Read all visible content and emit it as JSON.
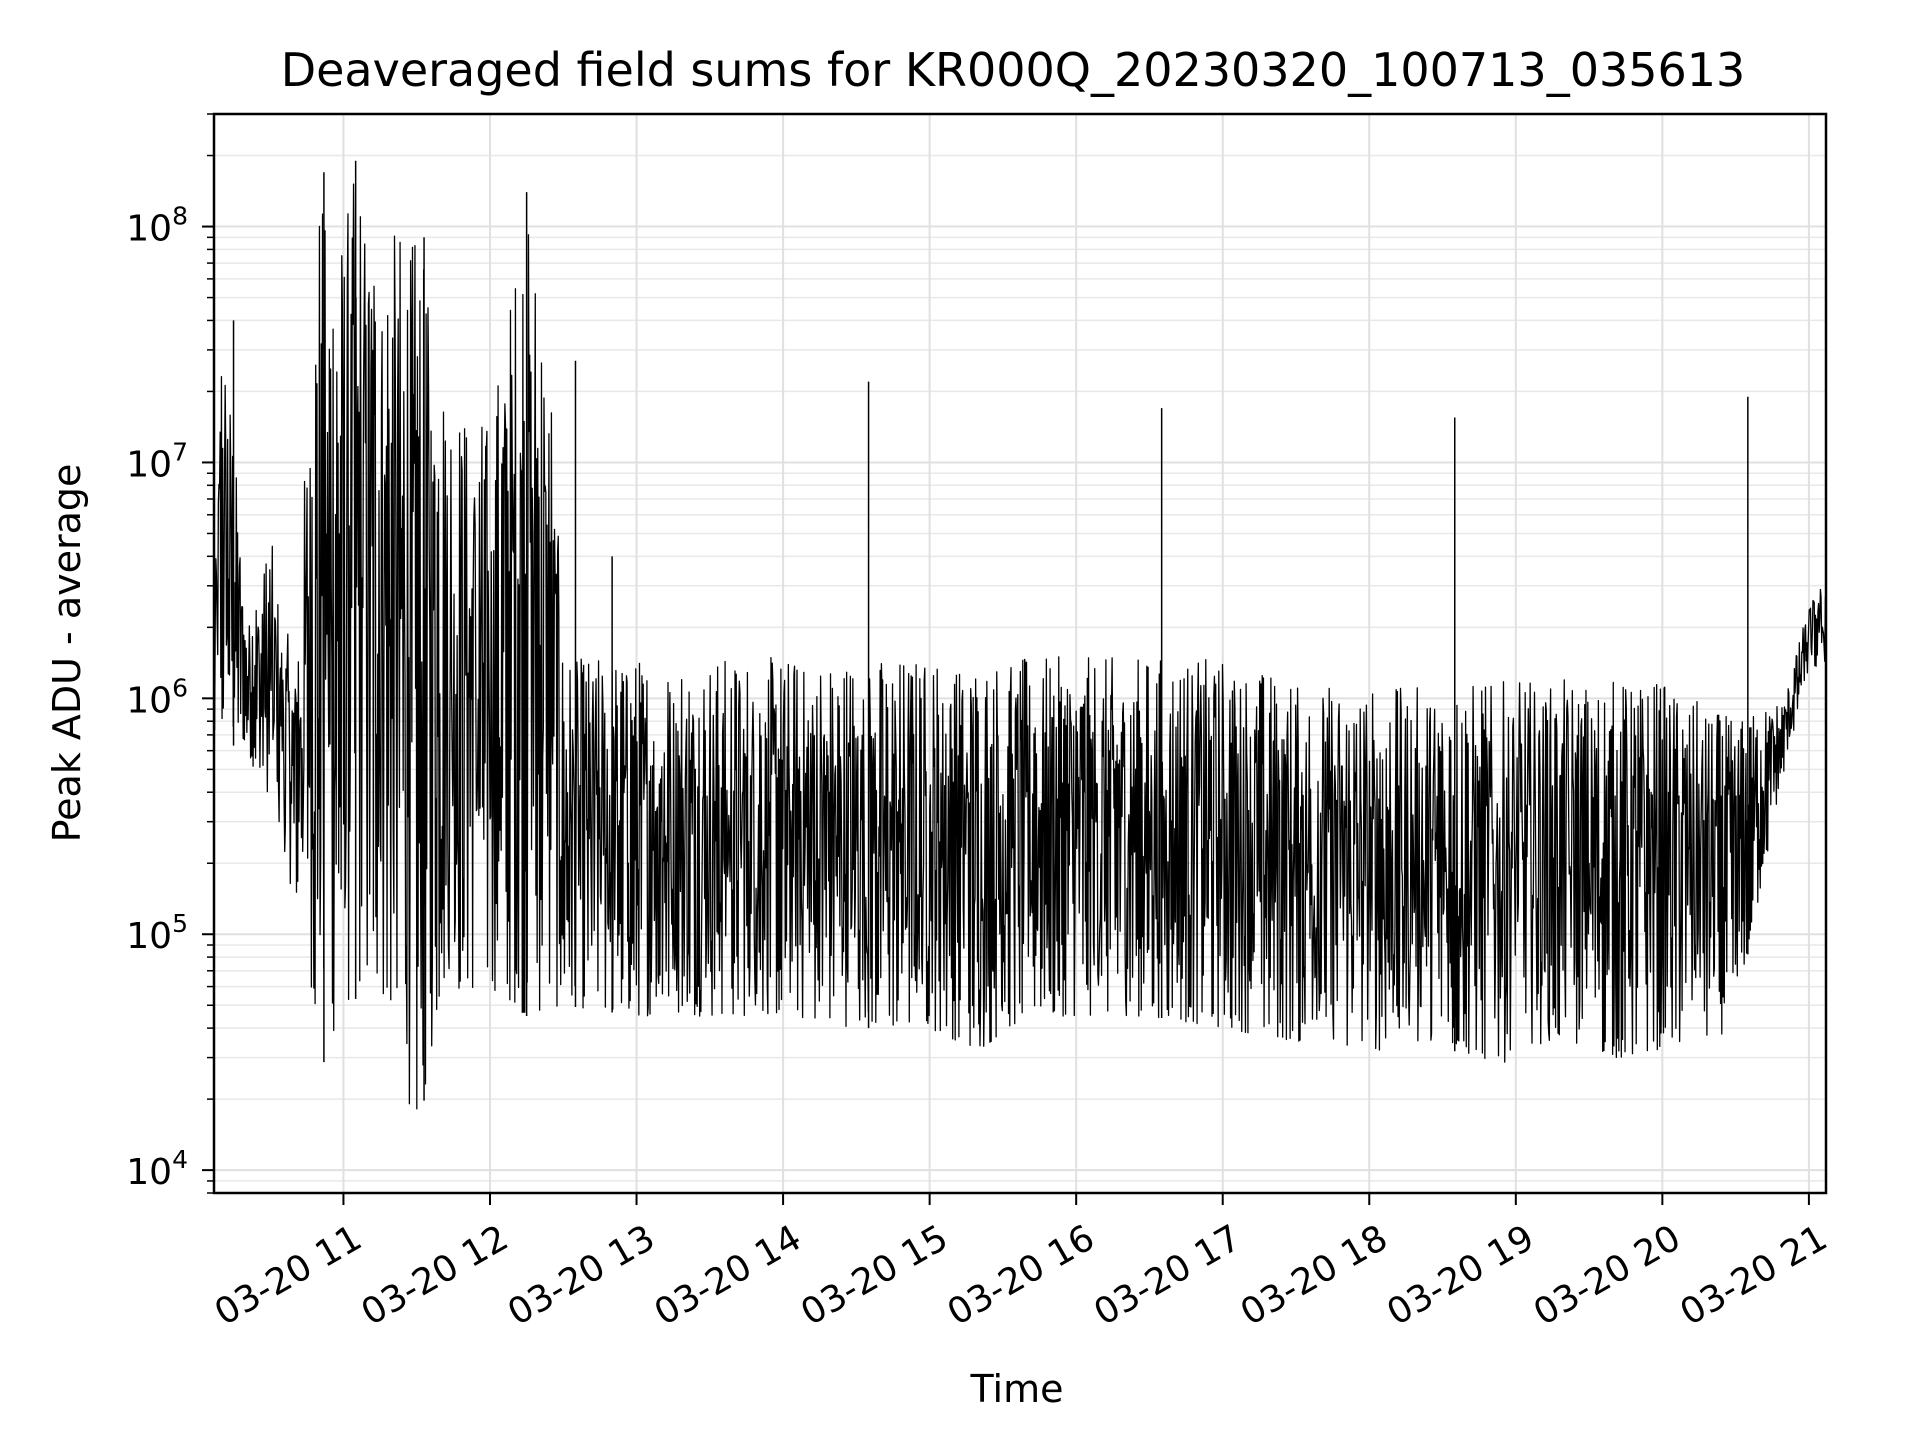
{
  "chart_data": {
    "type": "line",
    "title": "Deaveraged field sums for KR000Q_20230320_100713_035613",
    "xlabel": "Time",
    "ylabel": "Peak ADU - average",
    "yscale": "log",
    "grid": true,
    "line_color": "#000000",
    "x_ticks": [
      "03-20 11",
      "03-20 12",
      "03-20 13",
      "03-20 14",
      "03-20 15",
      "03-20 16",
      "03-20 17",
      "03-20 18",
      "03-20 19",
      "03-20 20",
      "03-20 21"
    ],
    "y_ticks": [
      {
        "base": "10",
        "exp": "4"
      },
      {
        "base": "10",
        "exp": "5"
      },
      {
        "base": "10",
        "exp": "6"
      },
      {
        "base": "10",
        "exp": "7"
      },
      {
        "base": "10",
        "exp": "8"
      }
    ],
    "xlim": [
      "03-20 10:07",
      "03-20 21:07"
    ],
    "ylim": [
      8000,
      300000000
    ],
    "envelope_min": [
      [
        "03-20 10:07",
        600000
      ],
      [
        "03-20 10:20",
        650000
      ],
      [
        "03-20 10:30",
        300000
      ],
      [
        "03-20 10:45",
        100000
      ],
      [
        "03-20 10:50",
        25000
      ],
      [
        "03-20 11:00",
        50000
      ],
      [
        "03-20 11:15",
        60000
      ],
      [
        "03-20 11:25",
        25000
      ],
      [
        "03-20 11:30",
        12700
      ],
      [
        "03-20 11:40",
        55000
      ],
      [
        "03-20 12:00",
        60000
      ],
      [
        "03-20 12:15",
        45000
      ],
      [
        "03-20 12:30",
        50000
      ],
      [
        "03-20 13:00",
        45000
      ],
      [
        "03-20 13:30",
        45000
      ],
      [
        "03-20 14:00",
        45000
      ],
      [
        "03-20 14:30",
        40000
      ],
      [
        "03-20 15:00",
        40000
      ],
      [
        "03-20 15:20",
        32000
      ],
      [
        "03-20 15:40",
        45000
      ],
      [
        "03-20 16:00",
        45000
      ],
      [
        "03-20 16:30",
        45000
      ],
      [
        "03-20 17:00",
        40000
      ],
      [
        "03-20 17:30",
        35000
      ],
      [
        "03-20 18:00",
        32000
      ],
      [
        "03-20 18:30",
        33000
      ],
      [
        "03-20 18:55",
        28000
      ],
      [
        "03-20 19:00",
        35000
      ],
      [
        "03-20 19:30",
        33000
      ],
      [
        "03-20 19:45",
        29000
      ],
      [
        "03-20 20:00",
        33000
      ],
      [
        "03-20 20:20",
        33000
      ],
      [
        "03-20 20:30",
        45000
      ],
      [
        "03-20 20:40",
        150000
      ],
      [
        "03-20 20:50",
        500000
      ],
      [
        "03-20 21:00",
        1300000
      ],
      [
        "03-20 21:07",
        1400000
      ]
    ],
    "envelope_max": [
      [
        "03-20 10:07",
        1800000
      ],
      [
        "03-20 10:10",
        40000000
      ],
      [
        "03-20 10:15",
        14000000
      ],
      [
        "03-20 10:20",
        2000000
      ],
      [
        "03-20 10:30",
        5000000
      ],
      [
        "03-20 10:40",
        1300000
      ],
      [
        "03-20 10:50",
        150000000
      ],
      [
        "03-20 11:00",
        100000000
      ],
      [
        "03-20 11:05",
        190000000
      ],
      [
        "03-20 11:15",
        110000000
      ],
      [
        "03-20 11:30",
        90000000
      ],
      [
        "03-20 11:45",
        20000000
      ],
      [
        "03-20 12:00",
        15000000
      ],
      [
        "03-20 12:15",
        140000000
      ],
      [
        "03-20 12:25",
        27000000
      ],
      [
        "03-20 12:30",
        1500000
      ],
      [
        "03-20 13:00",
        1500000
      ],
      [
        "03-20 14:00",
        1500000
      ],
      [
        "03-20 15:00",
        1500000
      ],
      [
        "03-20 16:00",
        1500000
      ],
      [
        "03-20 17:00",
        1500000
      ],
      [
        "03-20 17:30",
        1200000
      ],
      [
        "03-20 18:00",
        1100000
      ],
      [
        "03-20 19:00",
        1200000
      ],
      [
        "03-20 20:00",
        1200000
      ],
      [
        "03-20 20:30",
        800000
      ],
      [
        "03-20 20:50",
        1000000
      ],
      [
        "03-20 21:00",
        2500000
      ],
      [
        "03-20 21:07",
        3200000
      ]
    ],
    "spikes": [
      [
        "03-20 10:15",
        40000000
      ],
      [
        "03-20 10:52",
        170000000
      ],
      [
        "03-20 11:05",
        190000000
      ],
      [
        "03-20 11:33",
        90000000
      ],
      [
        "03-20 12:15",
        140000000
      ],
      [
        "03-20 12:35",
        27000000
      ],
      [
        "03-20 12:50",
        4000000
      ],
      [
        "03-20 14:35",
        22000000
      ],
      [
        "03-20 16:35",
        17000000
      ],
      [
        "03-20 18:35",
        15500000
      ],
      [
        "03-20 20:35",
        19000000
      ]
    ]
  }
}
